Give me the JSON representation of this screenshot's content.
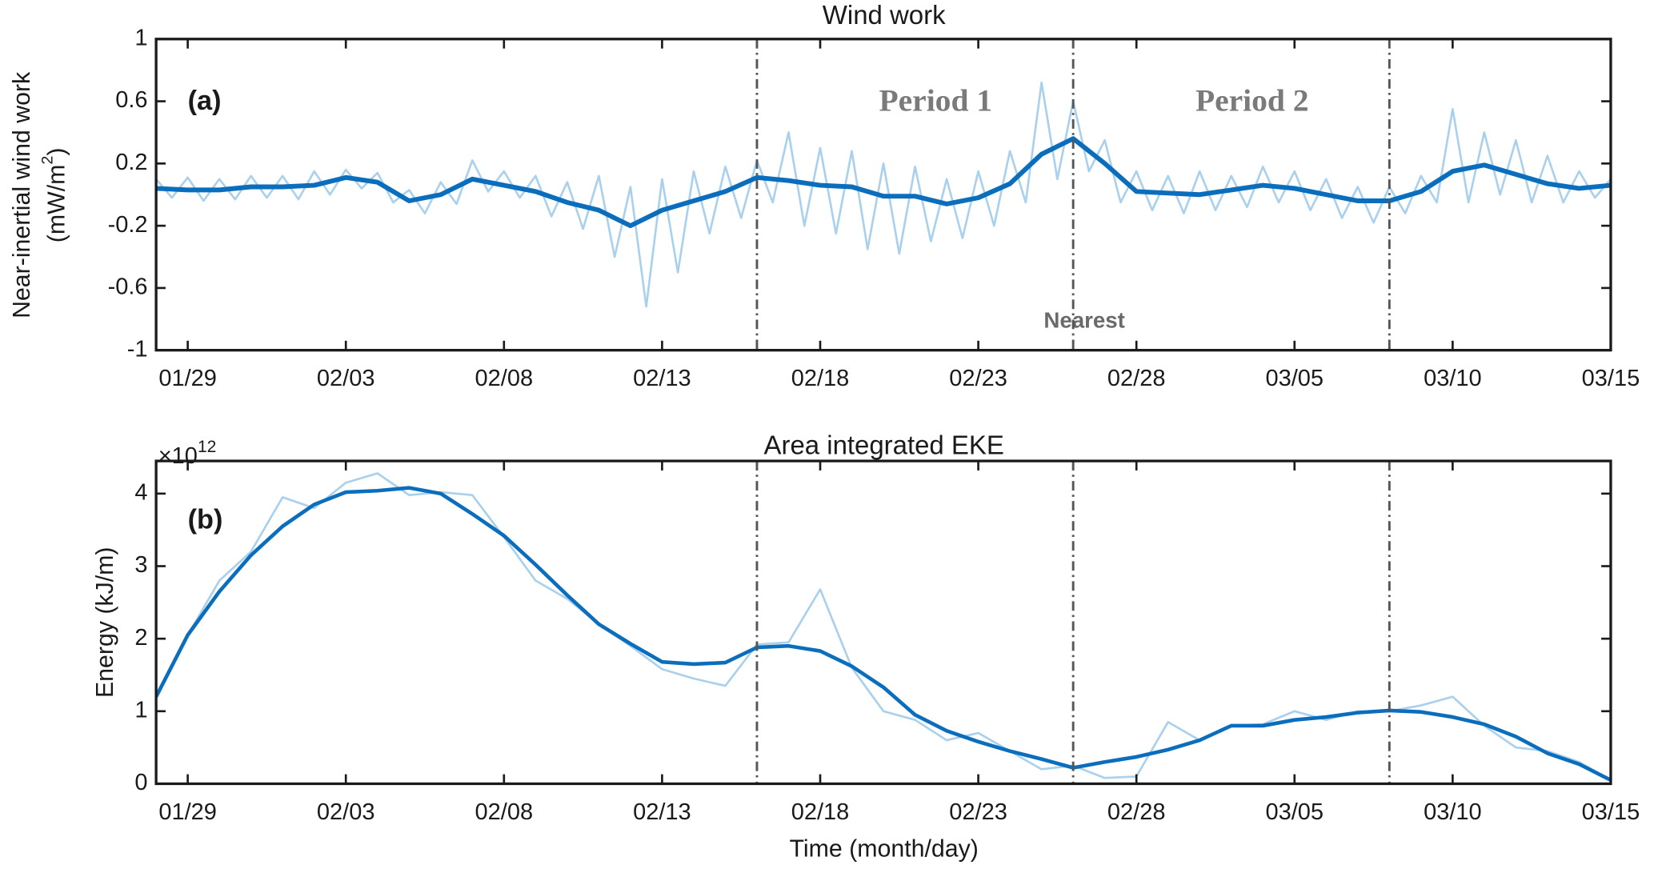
{
  "chart_data": [
    {
      "type": "line",
      "title": "Wind work",
      "panel_label": "(a)",
      "ylabel": "Near-inertial wind work",
      "ylabel_unit": "(mW/m",
      "ylabel_sup": "2",
      "ylabel_close": ")",
      "annotations": [
        "Period 1",
        "Period 2",
        "Nearest"
      ],
      "xlim": [
        28,
        74
      ],
      "ylim": [
        -1,
        1
      ],
      "xticks": [
        {
          "value": 29,
          "label": "01/29"
        },
        {
          "value": 34,
          "label": "02/03"
        },
        {
          "value": 39,
          "label": "02/08"
        },
        {
          "value": 44,
          "label": "02/13"
        },
        {
          "value": 49,
          "label": "02/18"
        },
        {
          "value": 54,
          "label": "02/23"
        },
        {
          "value": 59,
          "label": "02/28"
        },
        {
          "value": 64,
          "label": "03/05"
        },
        {
          "value": 69,
          "label": "03/10"
        },
        {
          "value": 74,
          "label": "03/15"
        }
      ],
      "yticks": [
        -1,
        -0.6,
        -0.2,
        0.2,
        0.6,
        1
      ],
      "vlines": [
        47,
        57,
        67
      ],
      "series": [
        {
          "color": "#a9d0ec",
          "width": 2,
          "x": [
            28,
            28.5,
            29,
            29.5,
            30,
            30.5,
            31,
            31.5,
            32,
            32.5,
            33,
            33.5,
            34,
            34.5,
            35,
            35.5,
            36,
            36.5,
            37,
            37.5,
            38,
            38.5,
            39,
            39.5,
            40,
            40.5,
            41,
            41.5,
            42,
            42.5,
            43,
            43.5,
            44,
            44.5,
            45,
            45.5,
            46,
            46.5,
            47,
            47.5,
            48,
            48.5,
            49,
            49.5,
            50,
            50.5,
            51,
            51.5,
            52,
            52.5,
            53,
            53.5,
            54,
            54.5,
            55,
            55.5,
            56,
            56.5,
            57,
            57.5,
            58,
            58.5,
            59,
            59.5,
            60,
            60.5,
            61,
            61.5,
            62,
            62.5,
            63,
            63.5,
            64,
            64.5,
            65,
            65.5,
            66,
            66.5,
            67,
            67.5,
            68,
            68.5,
            69,
            69.5,
            70,
            70.5,
            71,
            71.5,
            72,
            72.5,
            73,
            73.5,
            74
          ],
          "values": [
            0.1,
            -0.02,
            0.11,
            -0.04,
            0.1,
            -0.03,
            0.12,
            -0.02,
            0.12,
            -0.03,
            0.15,
            0.0,
            0.16,
            0.04,
            0.14,
            -0.05,
            0.03,
            -0.12,
            0.08,
            -0.06,
            0.22,
            0.02,
            0.15,
            -0.02,
            0.12,
            -0.14,
            0.08,
            -0.22,
            0.12,
            -0.4,
            0.05,
            -0.72,
            0.1,
            -0.5,
            0.15,
            -0.25,
            0.18,
            -0.15,
            0.22,
            -0.05,
            0.4,
            -0.2,
            0.3,
            -0.25,
            0.28,
            -0.35,
            0.2,
            -0.38,
            0.18,
            -0.3,
            0.1,
            -0.28,
            0.15,
            -0.2,
            0.28,
            -0.05,
            0.72,
            0.1,
            0.6,
            0.15,
            0.35,
            -0.05,
            0.15,
            -0.1,
            0.12,
            -0.12,
            0.15,
            -0.1,
            0.12,
            -0.08,
            0.18,
            -0.05,
            0.15,
            -0.1,
            0.1,
            -0.15,
            0.05,
            -0.18,
            0.05,
            -0.12,
            0.12,
            -0.05,
            0.55,
            -0.05,
            0.4,
            0.0,
            0.35,
            -0.05,
            0.25,
            -0.05,
            0.15,
            -0.02,
            0.1
          ]
        },
        {
          "color": "#0a6ebd",
          "width": 4.5,
          "x": [
            28,
            29,
            30,
            31,
            32,
            33,
            34,
            35,
            36,
            37,
            38,
            39,
            40,
            41,
            42,
            43,
            44,
            45,
            46,
            47,
            48,
            49,
            50,
            51,
            52,
            53,
            54,
            55,
            56,
            57,
            58,
            59,
            60,
            61,
            62,
            63,
            64,
            65,
            66,
            67,
            68,
            69,
            70,
            71,
            72,
            73,
            74
          ],
          "values": [
            0.04,
            0.03,
            0.03,
            0.05,
            0.05,
            0.06,
            0.11,
            0.08,
            -0.04,
            0.0,
            0.1,
            0.06,
            0.02,
            -0.05,
            -0.1,
            -0.2,
            -0.1,
            -0.04,
            0.02,
            0.11,
            0.09,
            0.06,
            0.05,
            -0.01,
            -0.01,
            -0.06,
            -0.02,
            0.07,
            0.26,
            0.36,
            0.2,
            0.02,
            0.01,
            0.0,
            0.03,
            0.06,
            0.04,
            0.0,
            -0.04,
            -0.04,
            0.02,
            0.15,
            0.19,
            0.13,
            0.07,
            0.04,
            0.06
          ]
        }
      ]
    },
    {
      "type": "line",
      "title": "Area integrated EKE",
      "panel_label": "(b)",
      "ylabel": "Energy (kJ/m)",
      "xlabel": "Time (month/day)",
      "exponent_base": "×10",
      "exponent": "12",
      "xlim": [
        28,
        74
      ],
      "ylim": [
        0,
        4.45
      ],
      "xticks": [
        {
          "value": 29,
          "label": "01/29"
        },
        {
          "value": 34,
          "label": "02/03"
        },
        {
          "value": 39,
          "label": "02/08"
        },
        {
          "value": 44,
          "label": "02/13"
        },
        {
          "value": 49,
          "label": "02/18"
        },
        {
          "value": 54,
          "label": "02/23"
        },
        {
          "value": 59,
          "label": "02/28"
        },
        {
          "value": 64,
          "label": "03/05"
        },
        {
          "value": 69,
          "label": "03/10"
        },
        {
          "value": 74,
          "label": "03/15"
        }
      ],
      "yticks": [
        0,
        1,
        2,
        3,
        4
      ],
      "vlines": [
        47,
        57,
        67
      ],
      "series": [
        {
          "color": "#a9d0ec",
          "width": 2,
          "x": [
            28,
            29,
            30,
            31,
            32,
            33,
            34,
            35,
            36,
            37,
            38,
            39,
            40,
            41,
            42,
            43,
            44,
            45,
            46,
            47,
            48,
            49,
            50,
            51,
            52,
            53,
            54,
            55,
            56,
            57,
            58,
            59,
            60,
            61,
            62,
            63,
            64,
            65,
            66,
            67,
            68,
            69,
            70,
            71,
            72,
            73,
            74
          ],
          "values": [
            1.2,
            2.05,
            2.8,
            3.2,
            3.95,
            3.8,
            4.15,
            4.28,
            3.98,
            4.02,
            3.98,
            3.4,
            2.8,
            2.55,
            2.2,
            1.9,
            1.58,
            1.45,
            1.35,
            1.92,
            1.95,
            2.68,
            1.6,
            1.0,
            0.88,
            0.6,
            0.7,
            0.45,
            0.2,
            0.25,
            0.08,
            0.1,
            0.85,
            0.6,
            0.8,
            0.82,
            1.0,
            0.88,
            1.0,
            1.0,
            1.08,
            1.2,
            0.8,
            0.5,
            0.45,
            0.3,
            0.05
          ]
        },
        {
          "color": "#0a6ebd",
          "width": 3.5,
          "x": [
            28,
            29,
            30,
            31,
            32,
            33,
            34,
            35,
            36,
            37,
            38,
            39,
            40,
            41,
            42,
            43,
            44,
            45,
            46,
            47,
            48,
            49,
            50,
            51,
            52,
            53,
            54,
            55,
            56,
            57,
            58,
            59,
            60,
            61,
            62,
            63,
            64,
            65,
            66,
            67,
            68,
            69,
            70,
            71,
            72,
            73,
            74
          ],
          "values": [
            1.2,
            2.05,
            2.65,
            3.15,
            3.55,
            3.85,
            4.02,
            4.04,
            4.08,
            4.0,
            3.72,
            3.42,
            3.02,
            2.6,
            2.2,
            1.93,
            1.68,
            1.65,
            1.67,
            1.88,
            1.9,
            1.83,
            1.62,
            1.33,
            0.95,
            0.73,
            0.58,
            0.45,
            0.34,
            0.22,
            0.3,
            0.37,
            0.47,
            0.6,
            0.8,
            0.8,
            0.88,
            0.92,
            0.98,
            1.01,
            0.99,
            0.92,
            0.82,
            0.65,
            0.42,
            0.27,
            0.05
          ]
        }
      ]
    }
  ]
}
